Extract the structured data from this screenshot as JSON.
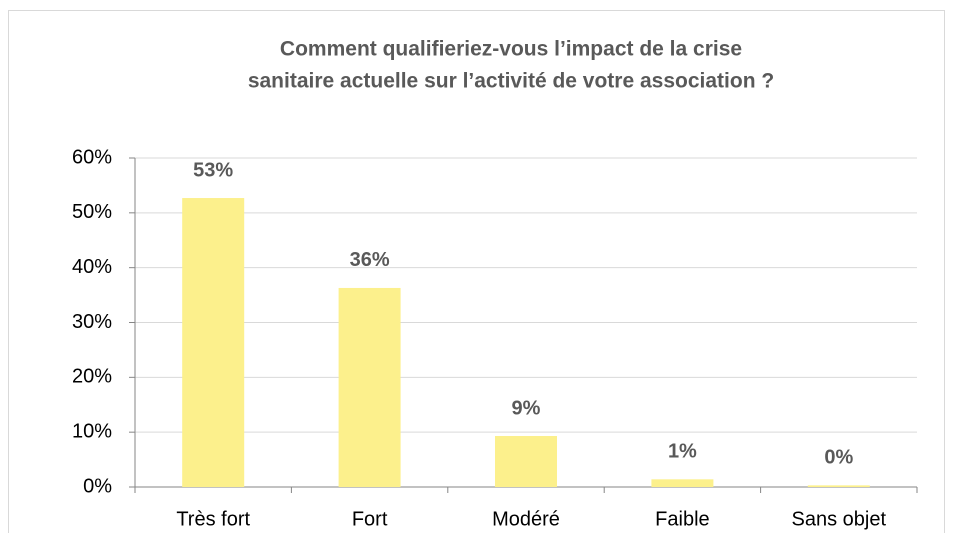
{
  "chart_data": {
    "type": "bar",
    "title": [
      "Comment qualifieriez-vous l’impact de la crise",
      "sanitaire actuelle sur l’activité de votre association ?"
    ],
    "categories": [
      "Très fort",
      "Fort",
      "Modéré",
      "Faible",
      "Sans objet"
    ],
    "values": [
      52.7,
      36.3,
      9.3,
      1.4,
      0.3
    ],
    "value_labels": [
      "53%",
      "36%",
      "9%",
      "1%",
      "0%"
    ],
    "color": "#fcf08c",
    "ylim": [
      0,
      60
    ],
    "yticks": [
      {
        "value": 0,
        "label": "0%"
      },
      {
        "value": 10,
        "label": "10%"
      },
      {
        "value": 20,
        "label": "20%"
      },
      {
        "value": 30,
        "label": "30%"
      },
      {
        "value": 40,
        "label": "40%"
      },
      {
        "value": 50,
        "label": "50%"
      },
      {
        "value": 60,
        "label": "60%"
      }
    ],
    "grid": true
  }
}
